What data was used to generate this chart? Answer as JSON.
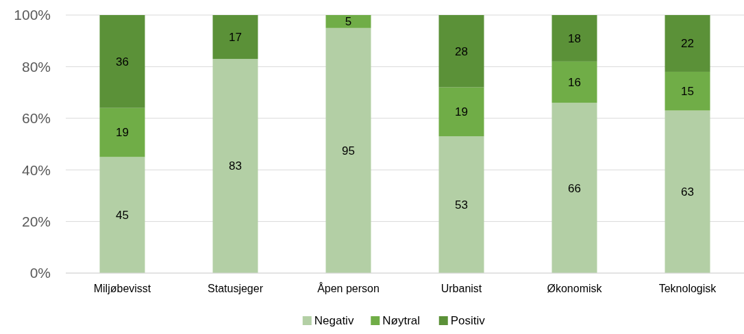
{
  "chart_data": {
    "type": "bar",
    "stacked": true,
    "categories": [
      "Miljøbevisst",
      "Statusjeger",
      "Åpen person",
      "Urbanist",
      "Økonomisk",
      "Teknologisk"
    ],
    "series": [
      {
        "name": "Negativ",
        "color": "#b3cfa5",
        "values": [
          45,
          83,
          95,
          53,
          66,
          63
        ]
      },
      {
        "name": "Nøytral",
        "color": "#70ad47",
        "values": [
          19,
          null,
          5,
          19,
          16,
          15
        ]
      },
      {
        "name": "Positiv",
        "color": "#5b9138",
        "values": [
          36,
          17,
          null,
          28,
          18,
          22
        ]
      }
    ],
    "ylim": [
      0,
      100
    ],
    "yticks": [
      {
        "value": 0,
        "label": "0%"
      },
      {
        "value": 20,
        "label": "20%"
      },
      {
        "value": 40,
        "label": "40%"
      },
      {
        "value": 60,
        "label": "60%"
      },
      {
        "value": 80,
        "label": "80%"
      },
      {
        "value": 100,
        "label": "100%"
      }
    ],
    "grid": "y",
    "legend": "bottom",
    "data_labels": true
  }
}
